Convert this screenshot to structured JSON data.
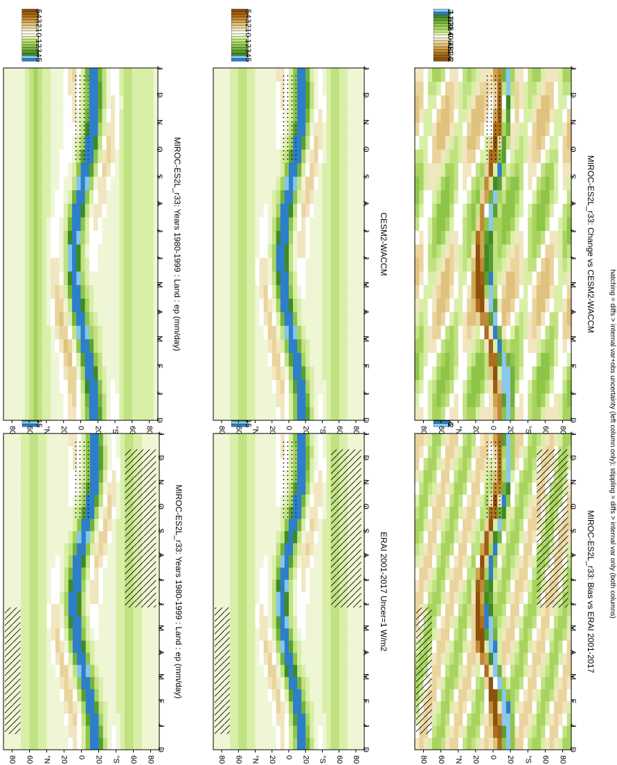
{
  "figure": {
    "footnote": "hatching = diffs > internal var+obs uncertainty (left column only); stippling = diffs > internal var only (both columns)",
    "orientation": "rotated-90-clockwise",
    "colors": {
      "abs_scale": [
        "#8c510a",
        "#9c5f14",
        "#ad6e1e",
        "#bf8a36",
        "#d0a44e",
        "#dfc27d",
        "#e9d49c",
        "#f2e6c0",
        "#ffffff",
        "#eef6d6",
        "#d9efa8",
        "#c1e282",
        "#a8d35f",
        "#8ec549",
        "#74b23d",
        "#5a9e31",
        "#3f8a26",
        "#84c6ea",
        "#2c7fc8"
      ],
      "diff_scale": [
        "#8cc7ec",
        "#2c7fc8",
        "#3f8a26",
        "#5a9e31",
        "#74b23d",
        "#8ec549",
        "#a8d35f",
        "#c1e282",
        "#d9efa8",
        "#ffffff",
        "#f2e6c0",
        "#e9d49c",
        "#dfc27d",
        "#d0a44e",
        "#bf8a36",
        "#ad6e1e",
        "#9c5f14",
        "#8c510a"
      ]
    }
  },
  "chart_data": [
    {
      "type": "heatmap",
      "title": "MIROC-ES2L_r33: Years 1980-1999 : Land : ep (mm/day)",
      "x": [
        "D",
        "J",
        "F",
        "M",
        "A",
        "M",
        "J",
        "J",
        "A",
        "S",
        "O",
        "N",
        "D",
        "J"
      ],
      "y_ticks": [
        "80",
        "60",
        "°N",
        "20",
        "0",
        "20",
        "°S",
        "60",
        "80"
      ],
      "ylim": [
        -90,
        90
      ],
      "colorbar": {
        "labels": [
          "5",
          "4",
          "3",
          "2",
          "1",
          "0",
          "-1",
          "-2",
          "-3",
          "-4",
          "-5"
        ],
        "range": [
          -5,
          5
        ],
        "scale": "abs"
      },
      "annotation": "hatched southern latitudes"
    },
    {
      "type": "heatmap",
      "title": "MIROC-ES2L_r33: Years 1980-1999 : Land : ep (mm/day)",
      "x": [
        "D",
        "J",
        "F",
        "M",
        "A",
        "M",
        "J",
        "J",
        "A",
        "S",
        "O",
        "N",
        "D",
        "J"
      ],
      "y_ticks": [
        "80",
        "60",
        "°N",
        "20",
        "0",
        "20",
        "°S",
        "60",
        "80"
      ],
      "ylim": [
        -90,
        90
      ],
      "colorbar": {
        "labels": [
          "5",
          "4",
          "3",
          "2",
          "1",
          "0",
          "-1",
          "-2",
          "-3",
          "-4",
          "-5"
        ],
        "range": [
          -5,
          5
        ],
        "scale": "abs"
      },
      "annotation": "stippled"
    },
    {
      "type": "heatmap",
      "title": "ERAI 2001-2017 Uncer=1 W/m2",
      "x": [
        "D",
        "J",
        "F",
        "M",
        "A",
        "M",
        "J",
        "J",
        "A",
        "S",
        "O",
        "N",
        "D",
        "J"
      ],
      "y_ticks": [
        "80",
        "60",
        "°N",
        "20",
        "0",
        "20",
        "°S",
        "60",
        "80"
      ],
      "ylim": [
        -90,
        90
      ],
      "colorbar": {
        "labels": [
          "5",
          "4",
          "3",
          "2",
          "1",
          "0",
          "-1",
          "-2",
          "-3",
          "-4",
          "-5"
        ],
        "range": [
          -5,
          5
        ],
        "scale": "abs"
      }
    },
    {
      "type": "heatmap",
      "title": "CESM2-WACCM",
      "x": [
        "D",
        "J",
        "F",
        "M",
        "A",
        "M",
        "J",
        "J",
        "A",
        "S",
        "O",
        "N",
        "D",
        "J"
      ],
      "y_ticks": [
        "80",
        "60",
        "°N",
        "20",
        "0",
        "20",
        "°S",
        "60",
        "80"
      ],
      "ylim": [
        -90,
        90
      ],
      "colorbar": {
        "labels": [
          "5",
          "4",
          "3",
          "2",
          "1",
          "0",
          "-1",
          "-2",
          "-3",
          "-4",
          "-5"
        ],
        "range": [
          -5,
          5
        ],
        "scale": "abs"
      }
    },
    {
      "type": "heatmap",
      "title": "MIROC-ES2L_r33: Bias vs ERAI 2001-2017",
      "x": [
        "D",
        "J",
        "F",
        "M",
        "A",
        "M",
        "J",
        "J",
        "A",
        "S",
        "O",
        "N",
        "D",
        "J"
      ],
      "y_ticks": [
        "80",
        "60",
        "°N",
        "20",
        "0",
        "20",
        "°S",
        "60",
        "80"
      ],
      "ylim": [
        -90,
        90
      ],
      "colorbar": {
        "labels": [
          "2",
          "1.6",
          "1.2",
          "0.8",
          "0.4",
          "0",
          "-0.4",
          "-0.8",
          "-1.2",
          "-1.6",
          "-2"
        ],
        "range": [
          -2,
          2
        ],
        "scale": "diff"
      }
    },
    {
      "type": "heatmap",
      "title": "MIROC-ES2L_r33: Change vs CESM2-WACCM",
      "x": [
        "D",
        "J",
        "F",
        "M",
        "A",
        "M",
        "J",
        "J",
        "A",
        "S",
        "O",
        "N",
        "D",
        "J"
      ],
      "y_ticks": [
        "80",
        "60",
        "°N",
        "20",
        "0",
        "20",
        "°S",
        "60",
        "80"
      ],
      "ylim": [
        -90,
        90
      ],
      "colorbar": {
        "labels": [
          "2",
          "1.6",
          "1.2",
          "0.8",
          "0.4",
          "0",
          "-0.4",
          "-0.8",
          "-1.2",
          "-1.6",
          "-2"
        ],
        "range": [
          -2,
          2
        ],
        "scale": "diff-rev"
      }
    }
  ]
}
